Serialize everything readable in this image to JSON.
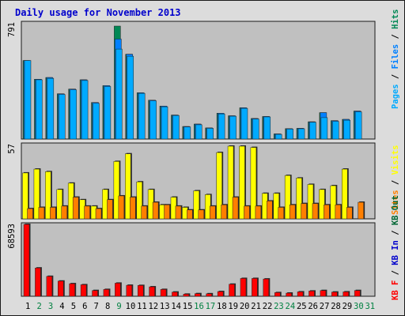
{
  "title": "Daily usage for November 2013",
  "colors": {
    "background": "#ffffff",
    "frame": "#dcdcdc",
    "plot_bg": "#c0c0c0",
    "border": "#1a1a1a",
    "title": "#0000cc",
    "pages": "#00aaff",
    "files": "#0080ff",
    "hits": "#008855",
    "visits": "#ffff00",
    "sites": "#ff7f00",
    "kb_in": "#0000cc",
    "kb_out": "#006633",
    "kb_f": "#ff0000",
    "weekday_label": "#000000",
    "weekend_label": "#008040"
  },
  "chart_data": [
    {
      "type": "bar",
      "panel": "top",
      "categories": [
        "1",
        "2",
        "3",
        "4",
        "5",
        "6",
        "7",
        "8",
        "9",
        "10",
        "11",
        "12",
        "13",
        "14",
        "15",
        "16",
        "17",
        "18",
        "19",
        "20",
        "21",
        "22",
        "23",
        "24",
        "25",
        "26",
        "27",
        "28",
        "29",
        "30",
        "31"
      ],
      "weekend_days": [
        "2",
        "3",
        "9",
        "16",
        "17",
        "23",
        "24",
        "30",
        "31"
      ],
      "y_max_label": "791",
      "ylim": [
        0,
        791
      ],
      "series": [
        {
          "name": "Hits",
          "values": [
            550,
            419,
            431,
            317,
            350,
            415,
            256,
            374,
            791,
            594,
            324,
            272,
            231,
            168,
            88,
            105,
            78,
            181,
            163,
            219,
            144,
            158,
            36,
            73,
            75,
            121,
            185,
            129,
            138,
            196,
            0
          ]
        },
        {
          "name": "Files",
          "values": [
            550,
            419,
            431,
            317,
            350,
            415,
            256,
            374,
            700,
            594,
            324,
            272,
            231,
            168,
            88,
            105,
            78,
            181,
            163,
            219,
            144,
            158,
            36,
            73,
            75,
            121,
            185,
            129,
            138,
            196,
            0
          ]
        },
        {
          "name": "Pages",
          "values": [
            550,
            415,
            425,
            312,
            345,
            410,
            250,
            368,
            630,
            580,
            320,
            268,
            226,
            165,
            85,
            100,
            75,
            176,
            160,
            215,
            140,
            155,
            33,
            70,
            72,
            118,
            150,
            123,
            132,
            190,
            0
          ]
        }
      ],
      "right_axis_labels": [
        "Pages",
        "Files",
        "Hits"
      ]
    },
    {
      "type": "bar",
      "panel": "middle",
      "categories": [
        "1",
        "2",
        "3",
        "4",
        "5",
        "6",
        "7",
        "8",
        "9",
        "10",
        "11",
        "12",
        "13",
        "14",
        "15",
        "16",
        "17",
        "18",
        "19",
        "20",
        "21",
        "22",
        "23",
        "24",
        "25",
        "26",
        "27",
        "28",
        "29",
        "30",
        "31"
      ],
      "y_max_label": "57",
      "ylim": [
        0,
        57
      ],
      "series": [
        {
          "name": "Visits",
          "values": [
            36,
            39,
            37,
            23,
            28,
            15,
            10,
            23,
            45,
            51,
            29,
            23,
            11,
            17,
            9,
            22,
            19,
            52,
            57,
            57,
            56,
            20,
            20,
            34,
            32,
            27,
            23,
            26,
            39,
            0,
            0
          ]
        },
        {
          "name": "Sites",
          "values": [
            8,
            9,
            9,
            10,
            17,
            10,
            8,
            15,
            18,
            17,
            10,
            13,
            11,
            10,
            7,
            7,
            10,
            11,
            17,
            10,
            10,
            14,
            9,
            11,
            12,
            12,
            11,
            11,
            9,
            13,
            0
          ]
        }
      ],
      "right_axis_labels": [
        "Sites",
        "Visits"
      ]
    },
    {
      "type": "bar",
      "panel": "bottom",
      "categories": [
        "1",
        "2",
        "3",
        "4",
        "5",
        "6",
        "7",
        "8",
        "9",
        "10",
        "11",
        "12",
        "13",
        "14",
        "15",
        "16",
        "17",
        "18",
        "19",
        "20",
        "21",
        "22",
        "23",
        "24",
        "25",
        "26",
        "27",
        "28",
        "29",
        "30",
        "31"
      ],
      "y_max_label": "68593",
      "ylim": [
        0,
        68593
      ],
      "series": [
        {
          "name": "KB F",
          "values": [
            68593,
            27000,
            19000,
            14500,
            12000,
            11000,
            5500,
            6500,
            12500,
            10500,
            10300,
            9000,
            6500,
            4000,
            2000,
            2500,
            2400,
            4500,
            11500,
            17000,
            17000,
            16500,
            3500,
            3000,
            4200,
            5000,
            5500,
            4000,
            4200,
            5500,
            0
          ]
        }
      ],
      "right_axis_labels": [
        "KB F",
        "KB In",
        "KB Out"
      ]
    }
  ]
}
